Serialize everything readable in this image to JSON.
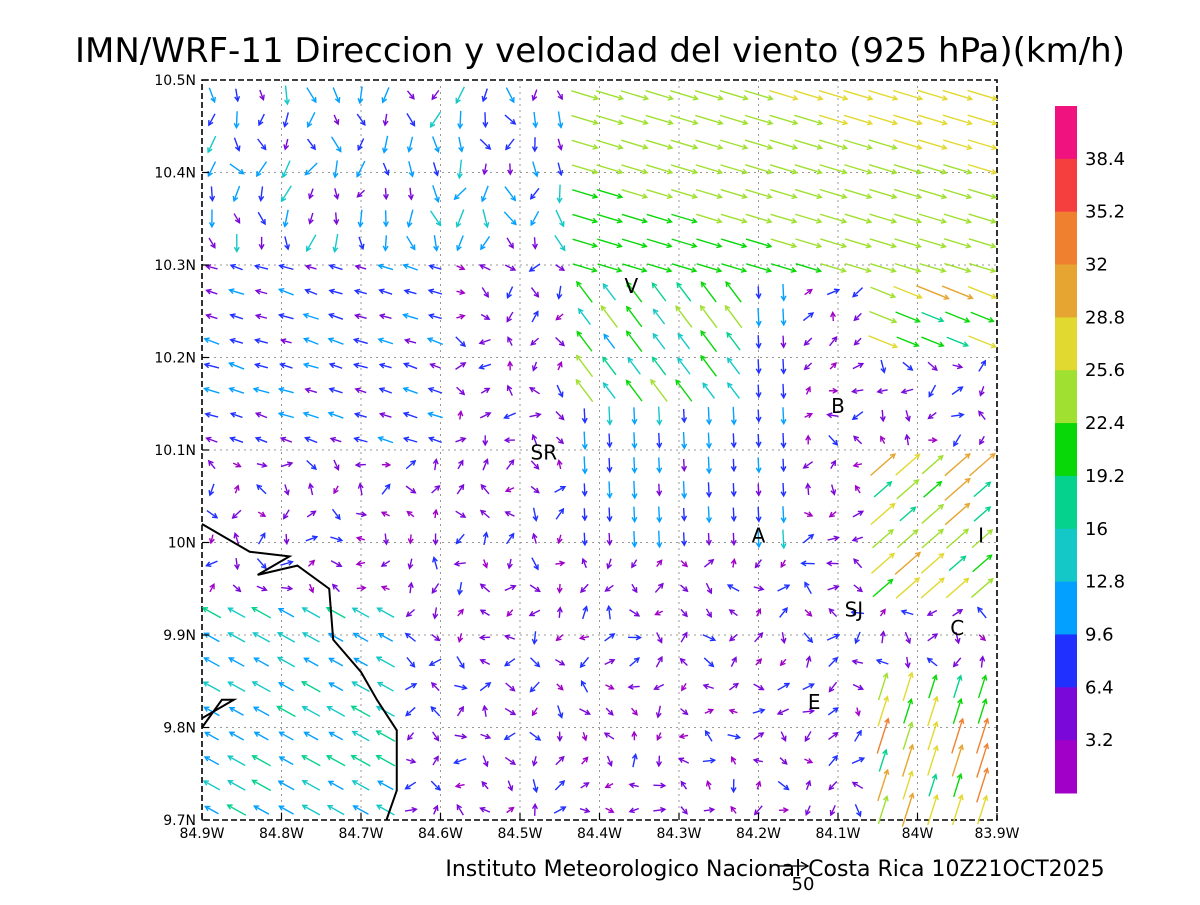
{
  "title": "IMN/WRF-11 Direccion y velocidad del viento (925 hPa)(km/h)",
  "footer": "Instituto Meteorologico Nacional Costa Rica 10Z21OCT2025",
  "reference_vector": {
    "value": "50"
  },
  "x_ticks": [
    "84.9W",
    "84.8W",
    "84.7W",
    "84.6W",
    "84.5W",
    "84.4W",
    "84.3W",
    "84.2W",
    "84.1W",
    "84W",
    "83.9W"
  ],
  "y_ticks": [
    "10.5N",
    "10.4N",
    "10.3N",
    "10.2N",
    "10.1N",
    "10N",
    "9.9N",
    "9.8N",
    "9.7N"
  ],
  "colorbar": {
    "labels": [
      "38.4",
      "35.2",
      "32",
      "28.8",
      "25.6",
      "22.4",
      "19.2",
      "16",
      "12.8",
      "9.6",
      "6.4",
      "3.2"
    ],
    "colors": [
      "#f0127e",
      "#f53f3f",
      "#ef8030",
      "#e5a530",
      "#e2d930",
      "#a0e030",
      "#08d808",
      "#05d28c",
      "#14c8c8",
      "#04a0ff",
      "#2030ff",
      "#7a08d8",
      "#a000c8"
    ]
  },
  "cities": [
    {
      "label": "V",
      "lon": -84.36,
      "lat": 10.27
    },
    {
      "label": "B",
      "lon": -84.1,
      "lat": 10.14
    },
    {
      "label": "SR",
      "lon": -84.47,
      "lat": 10.09
    },
    {
      "label": "A",
      "lon": -84.2,
      "lat": 10.0
    },
    {
      "label": "I",
      "lon": -83.92,
      "lat": 10.0
    },
    {
      "label": "SJ",
      "lon": -84.08,
      "lat": 9.92
    },
    {
      "label": "C",
      "lon": -83.95,
      "lat": 9.9
    },
    {
      "label": "E",
      "lon": -84.13,
      "lat": 9.82
    }
  ],
  "chart_data": {
    "type": "wind-vector-map",
    "title": "IMN/WRF-11 Direccion y velocidad del viento (925 hPa)(km/h)",
    "x_range": [
      -84.9,
      -83.9
    ],
    "y_range": [
      9.7,
      10.5
    ],
    "grid": true,
    "legend_position": "right",
    "units": "km/h"
  }
}
